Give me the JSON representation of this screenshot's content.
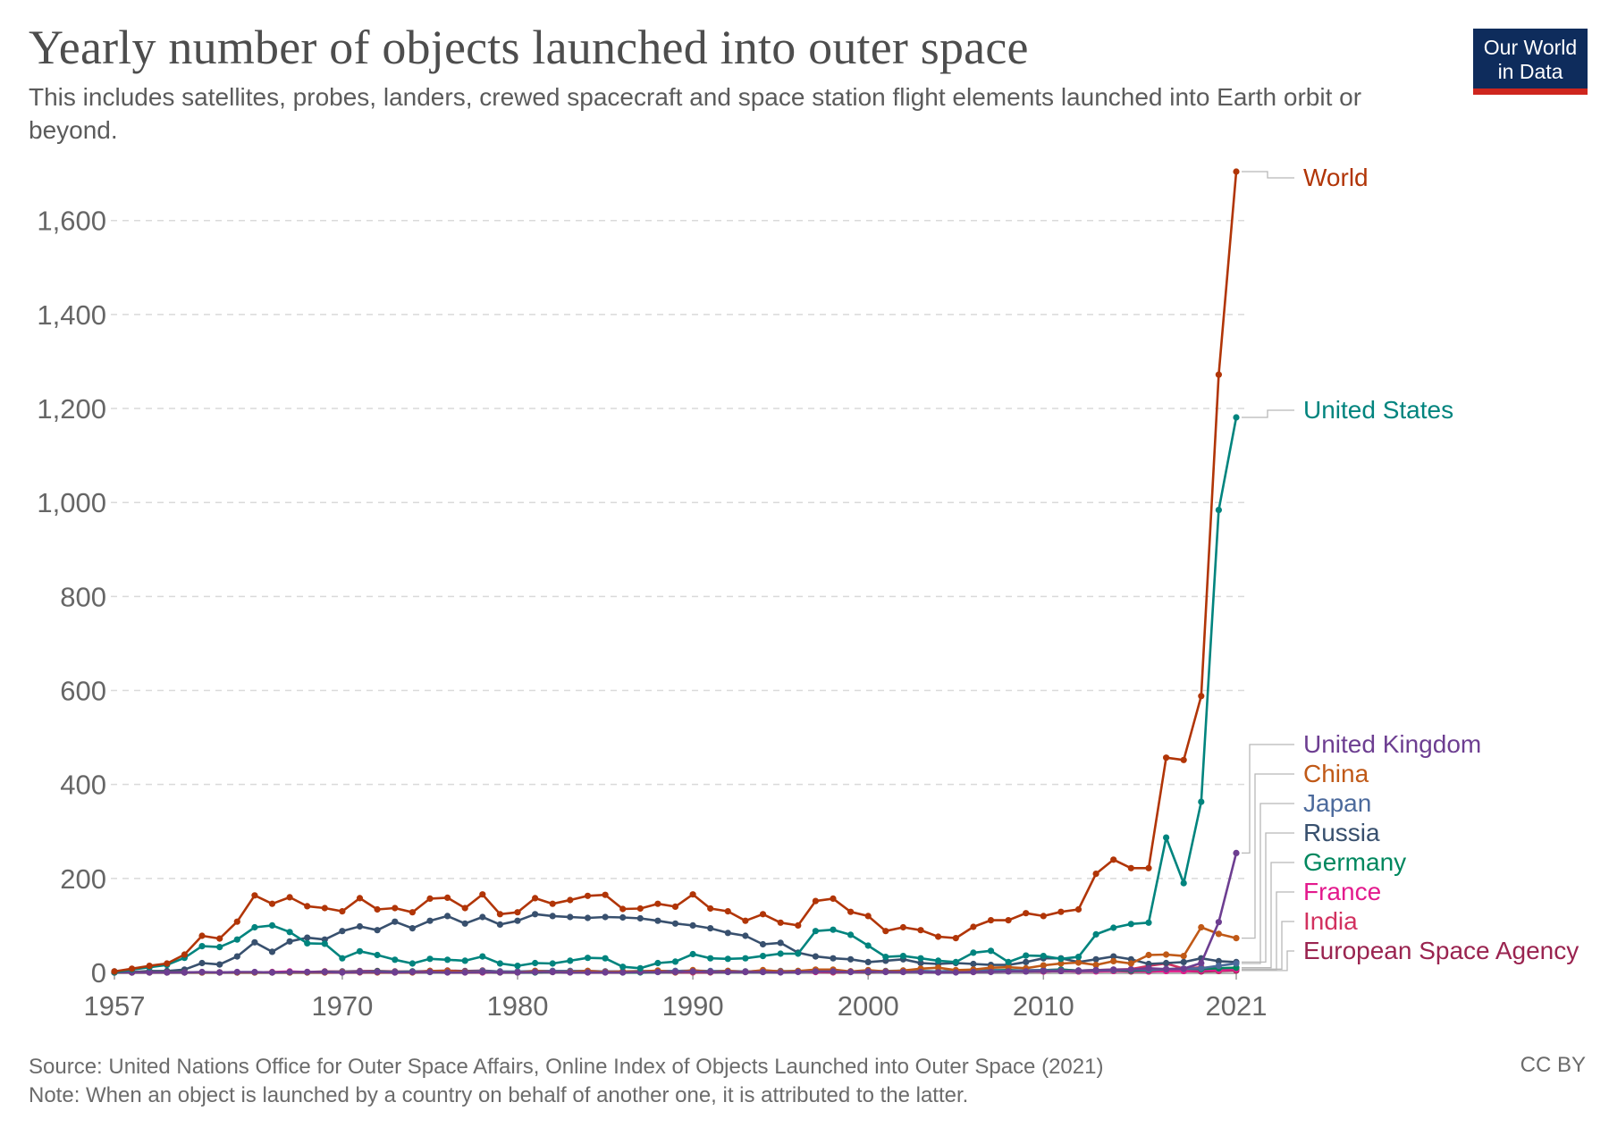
{
  "header": {
    "title": "Yearly number of objects launched into outer space",
    "subtitle": "This includes satellites, probes, landers, crewed spacecraft and space station flight elements launched into Earth orbit or beyond."
  },
  "logo": {
    "line1": "Our World",
    "line2": "in Data"
  },
  "footer": {
    "source": "Source: United Nations Office for Outer Space Affairs, Online Index of Objects Launched into Outer Space (2021)",
    "note": "Note: When an object is launched by a country on behalf of another one, it is attributed to the latter.",
    "license": "CC BY"
  },
  "chart_data": {
    "type": "line",
    "title": "Yearly number of objects launched into outer space",
    "xlabel": "",
    "ylabel": "",
    "xlim": [
      1957,
      2021
    ],
    "ylim": [
      0,
      1700
    ],
    "x_ticks": [
      "1957",
      "1970",
      "1980",
      "1990",
      "2000",
      "2010",
      "2021"
    ],
    "y_ticks": [
      0,
      200,
      400,
      600,
      800,
      1000,
      1200,
      1400,
      1600
    ],
    "grid": true,
    "legend": "end-of-line labels (right)",
    "x": [
      1957,
      1958,
      1959,
      1960,
      1961,
      1962,
      1963,
      1964,
      1965,
      1966,
      1967,
      1968,
      1969,
      1970,
      1971,
      1972,
      1973,
      1974,
      1975,
      1976,
      1977,
      1978,
      1979,
      1980,
      1981,
      1982,
      1983,
      1984,
      1985,
      1986,
      1987,
      1988,
      1989,
      1990,
      1991,
      1992,
      1993,
      1994,
      1995,
      1996,
      1997,
      1998,
      1999,
      2000,
      2001,
      2002,
      2003,
      2004,
      2005,
      2006,
      2007,
      2008,
      2009,
      2010,
      2011,
      2012,
      2013,
      2014,
      2015,
      2016,
      2017,
      2018,
      2019,
      2020,
      2021
    ],
    "series": [
      {
        "name": "World",
        "color": "#b13507",
        "values": [
          2,
          8,
          14,
          19,
          38,
          78,
          72,
          108,
          164,
          146,
          160,
          141,
          137,
          130,
          158,
          134,
          137,
          128,
          157,
          159,
          137,
          166,
          124,
          128,
          158,
          146,
          154,
          163,
          165,
          135,
          136,
          146,
          140,
          166,
          136,
          130,
          110,
          124,
          106,
          100,
          152,
          157,
          129,
          120,
          88,
          96,
          90,
          76,
          73,
          97,
          111,
          111,
          126,
          120,
          129,
          134,
          210,
          240,
          222,
          222,
          457,
          452,
          588,
          1272,
          1704
        ]
      },
      {
        "name": "United States",
        "color": "#00847e",
        "values": [
          0,
          6,
          11,
          16,
          31,
          56,
          54,
          70,
          96,
          100,
          86,
          62,
          61,
          30,
          45,
          37,
          27,
          19,
          29,
          27,
          25,
          34,
          19,
          14,
          20,
          19,
          25,
          31,
          30,
          12,
          9,
          20,
          23,
          39,
          30,
          29,
          30,
          35,
          40,
          40,
          88,
          91,
          80,
          57,
          33,
          35,
          30,
          25,
          22,
          42,
          46,
          22,
          36,
          35,
          29,
          33,
          81,
          95,
          103,
          106,
          287,
          190,
          363,
          984,
          1181
        ]
      },
      {
        "name": "United Kingdom",
        "color": "#6d3e91",
        "values": [
          0,
          0,
          0,
          0,
          0,
          1,
          0,
          1,
          1,
          0,
          1,
          1,
          1,
          0,
          1,
          1,
          0,
          1,
          1,
          0,
          0,
          1,
          0,
          0,
          1,
          1,
          0,
          0,
          0,
          0,
          1,
          1,
          1,
          2,
          1,
          1,
          1,
          1,
          0,
          1,
          2,
          2,
          1,
          2,
          1,
          1,
          1,
          0,
          0,
          1,
          1,
          2,
          2,
          3,
          3,
          4,
          5,
          6,
          6,
          9,
          7,
          8,
          20,
          107,
          254
        ]
      },
      {
        "name": "China",
        "color": "#c05917",
        "values": [
          0,
          0,
          0,
          0,
          0,
          0,
          0,
          0,
          0,
          0,
          0,
          0,
          0,
          1,
          1,
          0,
          0,
          0,
          3,
          3,
          1,
          1,
          0,
          0,
          3,
          1,
          1,
          3,
          1,
          2,
          2,
          4,
          0,
          5,
          1,
          3,
          1,
          5,
          2,
          3,
          6,
          6,
          2,
          5,
          2,
          4,
          8,
          10,
          5,
          6,
          10,
          11,
          9,
          15,
          19,
          21,
          16,
          24,
          19,
          37,
          38,
          35,
          96,
          82,
          73
        ]
      },
      {
        "name": "Japan",
        "color": "#4c6a9c",
        "values": [
          0,
          0,
          0,
          0,
          0,
          0,
          0,
          0,
          0,
          0,
          0,
          0,
          0,
          2,
          2,
          1,
          1,
          1,
          3,
          2,
          2,
          3,
          2,
          2,
          3,
          3,
          3,
          3,
          2,
          2,
          3,
          3,
          3,
          4,
          3,
          3,
          2,
          3,
          3,
          2,
          3,
          2,
          1,
          2,
          3,
          4,
          3,
          2,
          4,
          5,
          5,
          3,
          5,
          5,
          4,
          3,
          4,
          5,
          6,
          6,
          7,
          8,
          9,
          14,
          19
        ]
      },
      {
        "name": "Russia",
        "color": "#38506e",
        "values": [
          2,
          1,
          3,
          3,
          6,
          20,
          17,
          34,
          64,
          44,
          66,
          74,
          70,
          88,
          98,
          90,
          108,
          94,
          110,
          120,
          104,
          118,
          102,
          110,
          124,
          120,
          118,
          116,
          118,
          117,
          115,
          110,
          104,
          100,
          94,
          84,
          78,
          60,
          63,
          42,
          34,
          30,
          28,
          22,
          25,
          28,
          20,
          18,
          20,
          18,
          16,
          16,
          22,
          30,
          30,
          22,
          28,
          34,
          28,
          18,
          20,
          22,
          30,
          24,
          22
        ]
      },
      {
        "name": "Germany",
        "color": "#00875e",
        "values": [
          0,
          0,
          0,
          0,
          0,
          0,
          0,
          0,
          0,
          0,
          0,
          0,
          1,
          1,
          1,
          2,
          1,
          2,
          1,
          1,
          1,
          1,
          0,
          0,
          0,
          1,
          1,
          1,
          1,
          0,
          0,
          1,
          1,
          2,
          1,
          1,
          1,
          1,
          2,
          3,
          3,
          3,
          2,
          1,
          2,
          2,
          3,
          2,
          3,
          4,
          5,
          5,
          4,
          5,
          6,
          4,
          5,
          5,
          4,
          5,
          7,
          8,
          7,
          9,
          10
        ]
      },
      {
        "name": "France",
        "color": "#e31a8d",
        "values": [
          0,
          0,
          0,
          0,
          0,
          0,
          0,
          0,
          0,
          1,
          2,
          1,
          0,
          1,
          2,
          1,
          0,
          1,
          3,
          1,
          1,
          0,
          1,
          0,
          0,
          1,
          0,
          1,
          1,
          1,
          1,
          2,
          1,
          2,
          1,
          2,
          1,
          2,
          2,
          2,
          1,
          2,
          2,
          3,
          2,
          2,
          2,
          2,
          3,
          3,
          2,
          3,
          3,
          2,
          3,
          2,
          2,
          3,
          3,
          2,
          3,
          3,
          4,
          5,
          6
        ]
      },
      {
        "name": "India",
        "color": "#d2315f",
        "values": [
          0,
          0,
          0,
          0,
          0,
          0,
          0,
          0,
          0,
          0,
          0,
          0,
          0,
          0,
          0,
          0,
          0,
          0,
          1,
          0,
          0,
          0,
          1,
          1,
          1,
          1,
          1,
          0,
          0,
          0,
          1,
          1,
          0,
          0,
          0,
          1,
          1,
          1,
          1,
          2,
          1,
          0,
          1,
          0,
          2,
          2,
          2,
          1,
          2,
          1,
          3,
          5,
          4,
          5,
          6,
          4,
          5,
          6,
          7,
          14,
          19,
          8,
          11,
          4,
          7
        ]
      },
      {
        "name": "European Space Agency",
        "color": "#9a2450",
        "values": [
          0,
          0,
          0,
          0,
          0,
          0,
          0,
          0,
          0,
          0,
          0,
          1,
          2,
          2,
          3,
          3,
          2,
          2,
          3,
          4,
          3,
          4,
          2,
          1,
          3,
          3,
          3,
          3,
          2,
          2,
          2,
          3,
          3,
          3,
          2,
          3,
          2,
          3,
          2,
          2,
          2,
          1,
          2,
          2,
          1,
          1,
          2,
          1,
          1,
          1,
          2,
          3,
          2,
          2,
          3,
          2,
          3,
          3,
          2,
          2,
          3,
          3,
          2,
          3,
          4
        ]
      }
    ]
  }
}
